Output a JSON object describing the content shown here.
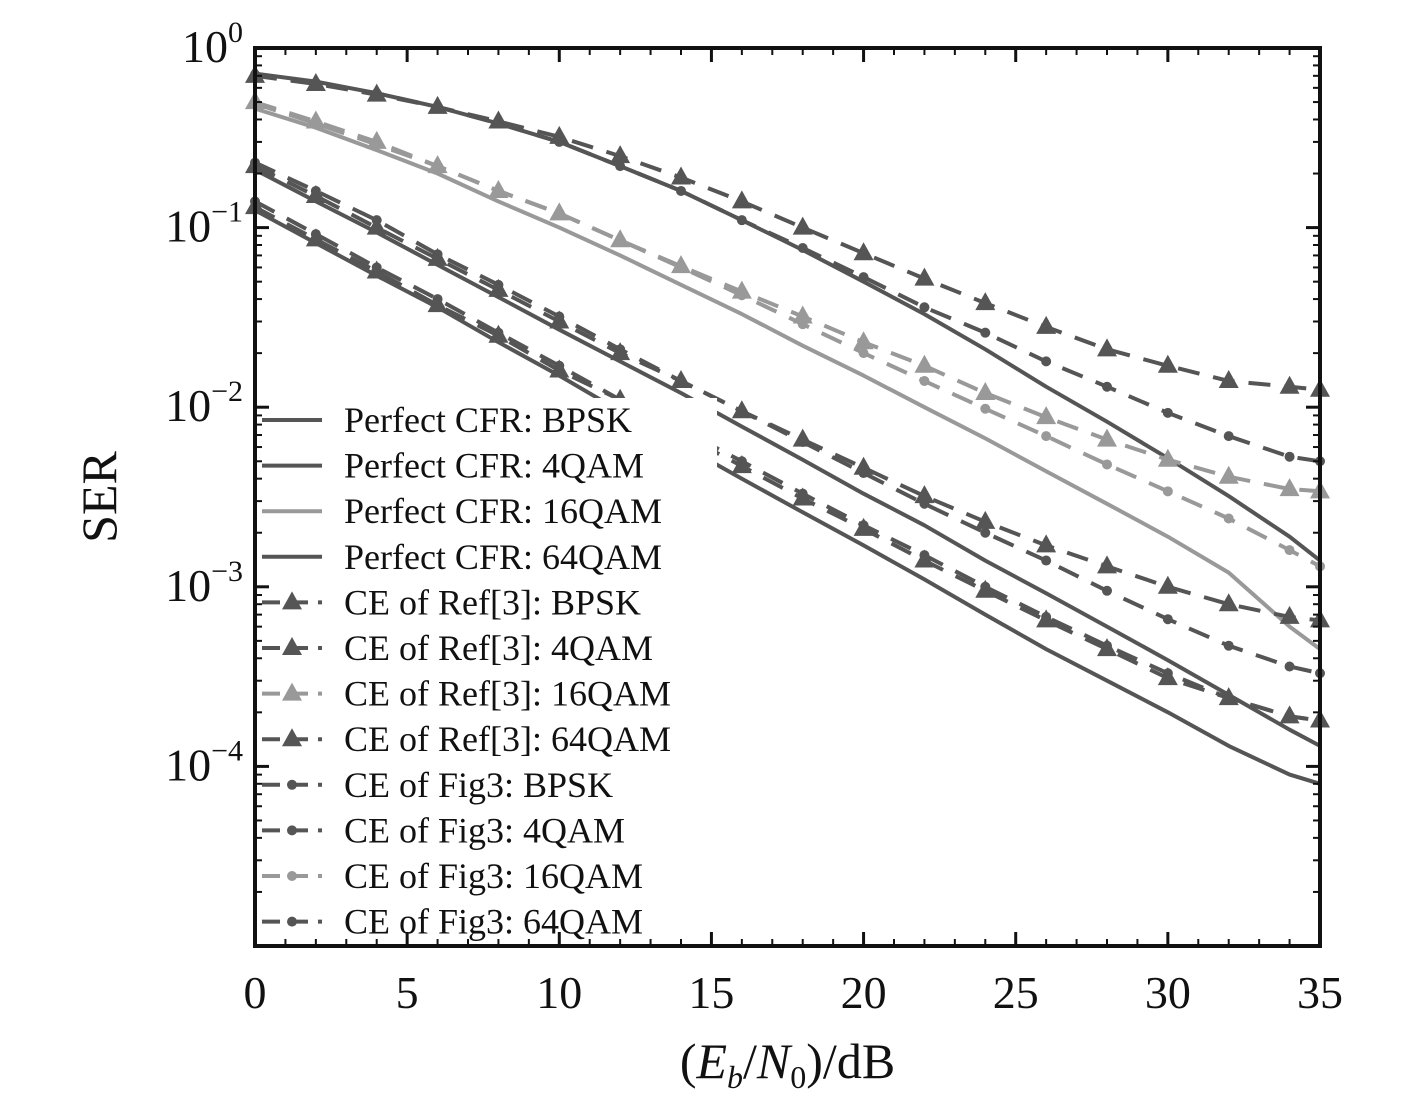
{
  "chart_data": {
    "type": "line",
    "title": "",
    "xlabel_parts": [
      "(",
      "E",
      "b",
      "/",
      "N",
      "0",
      ")/dB"
    ],
    "xlabel": "(E_b/N_0)/dB",
    "ylabel": "SER",
    "xscale": "linear",
    "yscale": "log",
    "xlim": [
      0,
      35
    ],
    "ylim": [
      1e-05,
      1
    ],
    "grid": false,
    "legend_position": "lower-left",
    "x_ticks": [
      0,
      5,
      10,
      15,
      20,
      25,
      30,
      35
    ],
    "x_tick_labels": [
      "0",
      "5",
      "10",
      "15",
      "20",
      "25",
      "30",
      "35"
    ],
    "y_ticks": [
      1,
      0.1,
      0.01,
      0.001,
      0.0001
    ],
    "y_tick_labels": [
      {
        "base": "10",
        "exp": "0"
      },
      {
        "base": "10",
        "exp": "−1"
      },
      {
        "base": "10",
        "exp": "−2"
      },
      {
        "base": "10",
        "exp": "−3"
      },
      {
        "base": "10",
        "exp": "−4"
      }
    ],
    "x": [
      0,
      2,
      4,
      6,
      8,
      10,
      12,
      14,
      16,
      18,
      20,
      22,
      24,
      26,
      28,
      30,
      32,
      34,
      35
    ],
    "series": [
      {
        "name": "Perfect CFR: BPSK",
        "style": "solid",
        "marker": "none",
        "color": "#555555",
        "values": [
          0.125,
          0.082,
          0.054,
          0.036,
          0.023,
          0.015,
          0.0095,
          0.0062,
          0.004,
          0.0026,
          0.0017,
          0.0011,
          0.0007,
          0.00045,
          0.0003,
          0.0002,
          0.00013,
          9e-05,
          8e-05
        ]
      },
      {
        "name": "Perfect CFR: 4QAM",
        "style": "solid",
        "marker": "none",
        "color": "#555555",
        "values": [
          0.21,
          0.14,
          0.094,
          0.062,
          0.041,
          0.027,
          0.018,
          0.012,
          0.0078,
          0.0051,
          0.0033,
          0.0022,
          0.0014,
          0.00092,
          0.0006,
          0.00039,
          0.00025,
          0.00016,
          0.00013
        ]
      },
      {
        "name": "Perfect CFR: 16QAM",
        "style": "solid",
        "marker": "none",
        "color": "#999999",
        "values": [
          0.46,
          0.36,
          0.27,
          0.2,
          0.14,
          0.1,
          0.07,
          0.048,
          0.033,
          0.022,
          0.015,
          0.01,
          0.0067,
          0.0044,
          0.0029,
          0.0019,
          0.0012,
          0.0006,
          0.00045
        ]
      },
      {
        "name": "Perfect CFR: 64QAM",
        "style": "solid",
        "marker": "none",
        "color": "#555555",
        "values": [
          0.72,
          0.65,
          0.56,
          0.47,
          0.38,
          0.3,
          0.22,
          0.16,
          0.11,
          0.075,
          0.05,
          0.033,
          0.021,
          0.013,
          0.0083,
          0.0052,
          0.0032,
          0.0019,
          0.0014
        ]
      },
      {
        "name": "CE of Ref[3]: BPSK",
        "style": "dashed",
        "marker": "triangle",
        "color": "#555555",
        "values": [
          0.13,
          0.086,
          0.057,
          0.037,
          0.025,
          0.016,
          0.011,
          0.0071,
          0.0047,
          0.0031,
          0.0021,
          0.0014,
          0.00095,
          0.00065,
          0.00045,
          0.00031,
          0.00024,
          0.00019,
          0.00018
        ]
      },
      {
        "name": "CE of Ref[3]: 4QAM",
        "style": "dashed",
        "marker": "triangle",
        "color": "#555555",
        "values": [
          0.22,
          0.15,
          0.1,
          0.067,
          0.045,
          0.03,
          0.02,
          0.014,
          0.0095,
          0.0066,
          0.0046,
          0.0032,
          0.0023,
          0.0017,
          0.0013,
          0.001,
          0.0008,
          0.00068,
          0.00065
        ]
      },
      {
        "name": "CE of Ref[3]: 16QAM",
        "style": "dashed",
        "marker": "triangle",
        "color": "#999999",
        "values": [
          0.5,
          0.39,
          0.3,
          0.22,
          0.16,
          0.12,
          0.085,
          0.061,
          0.044,
          0.032,
          0.023,
          0.017,
          0.012,
          0.0088,
          0.0066,
          0.0051,
          0.0041,
          0.0035,
          0.0034
        ]
      },
      {
        "name": "CE of Ref[3]: 64QAM",
        "style": "dashed",
        "marker": "triangle",
        "color": "#555555",
        "values": [
          0.7,
          0.63,
          0.55,
          0.47,
          0.39,
          0.32,
          0.25,
          0.19,
          0.14,
          0.1,
          0.072,
          0.052,
          0.038,
          0.028,
          0.021,
          0.017,
          0.014,
          0.013,
          0.0125
        ]
      },
      {
        "name": "CE of Fig3: BPSK",
        "style": "dashed",
        "marker": "dot",
        "color": "#555555",
        "values": [
          0.14,
          0.092,
          0.06,
          0.04,
          0.026,
          0.017,
          0.011,
          0.0075,
          0.005,
          0.0033,
          0.0022,
          0.0015,
          0.001,
          0.00068,
          0.00047,
          0.00033,
          0.00024,
          0.00019,
          0.00018
        ]
      },
      {
        "name": "CE of Fig3: 4QAM",
        "style": "dashed",
        "marker": "dot",
        "color": "#555555",
        "values": [
          0.23,
          0.16,
          0.11,
          0.071,
          0.048,
          0.032,
          0.021,
          0.014,
          0.0095,
          0.0064,
          0.0043,
          0.0029,
          0.002,
          0.0014,
          0.00095,
          0.00066,
          0.00047,
          0.00036,
          0.00033
        ]
      },
      {
        "name": "CE of Fig3: 16QAM",
        "style": "dashed",
        "marker": "dot",
        "color": "#999999",
        "values": [
          0.49,
          0.38,
          0.29,
          0.22,
          0.16,
          0.12,
          0.085,
          0.06,
          0.042,
          0.029,
          0.02,
          0.014,
          0.0098,
          0.0069,
          0.0048,
          0.0034,
          0.0024,
          0.0016,
          0.0013
        ]
      },
      {
        "name": "CE of Fig3: 64QAM",
        "style": "dashed",
        "marker": "dot",
        "color": "#555555",
        "values": [
          0.71,
          0.64,
          0.56,
          0.47,
          0.38,
          0.3,
          0.22,
          0.16,
          0.11,
          0.077,
          0.053,
          0.036,
          0.026,
          0.018,
          0.013,
          0.0093,
          0.0069,
          0.0053,
          0.005
        ]
      }
    ]
  }
}
